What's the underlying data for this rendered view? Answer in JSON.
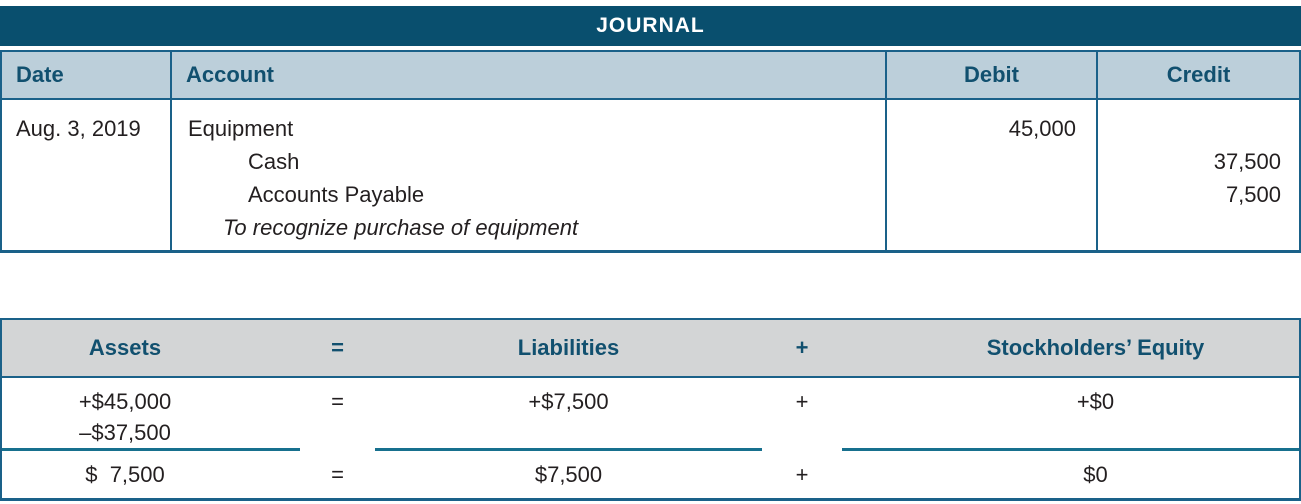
{
  "journal": {
    "title": "JOURNAL",
    "columns": {
      "date": "Date",
      "account": "Account",
      "debit": "Debit",
      "credit": "Credit"
    },
    "entry": {
      "date": "Aug. 3, 2019",
      "lines": [
        {
          "account": "Equipment",
          "debit": "45,000",
          "credit": ""
        },
        {
          "account": "Cash",
          "debit": "",
          "credit": "37,500"
        },
        {
          "account": "Accounts Payable",
          "debit": "",
          "credit": "7,500"
        },
        {
          "account": "To recognize purchase of equipment",
          "debit": "",
          "credit": "",
          "style": "italic-note"
        }
      ]
    }
  },
  "equation": {
    "headers": {
      "assets": "Assets",
      "equals": "=",
      "liabilities": "Liabilities",
      "plus": "+",
      "equity": "Stockholders’ Equity"
    },
    "changes": {
      "assets": [
        "+$45,000",
        "–$37,500"
      ],
      "equals": "=",
      "liabilities": [
        "+$7,500"
      ],
      "plus": "+",
      "equity": [
        "+$0"
      ]
    },
    "totals": {
      "assets": "$  7,500",
      "equals": "=",
      "liabilities": "$7,500",
      "plus": "+",
      "equity": "$0"
    }
  },
  "colors": {
    "banner_teal": "#094f6e",
    "border_teal": "#1a6189",
    "rule_teal": "#17708e",
    "header_text_teal": "#11506f",
    "journal_header_blue": "#bccfda",
    "equation_header_gray": "#d3d5d6",
    "body_ink": "#231f20"
  }
}
